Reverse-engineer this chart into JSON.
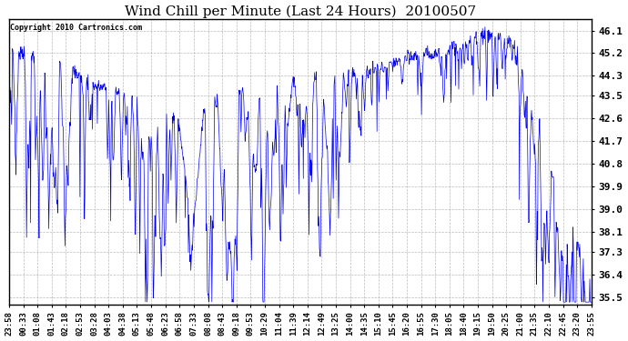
{
  "title": "Wind Chill per Minute (Last 24 Hours)  20100507",
  "copyright": "Copyright 2010 Cartronics.com",
  "line_color": "#0000EE",
  "bg_color": "#ffffff",
  "plot_bg_color": "#ffffff",
  "grid_color": "#aaaaaa",
  "ylim": [
    35.2,
    46.55
  ],
  "yticks": [
    35.5,
    36.4,
    37.3,
    38.1,
    39.0,
    39.9,
    40.8,
    41.7,
    42.6,
    43.5,
    44.3,
    45.2,
    46.1
  ],
  "xtick_labels": [
    "23:58",
    "00:33",
    "01:08",
    "01:43",
    "02:18",
    "02:53",
    "03:28",
    "04:03",
    "04:38",
    "05:13",
    "05:48",
    "06:23",
    "06:58",
    "07:33",
    "08:08",
    "08:43",
    "09:18",
    "09:53",
    "10:29",
    "11:04",
    "11:39",
    "12:14",
    "12:49",
    "13:25",
    "14:00",
    "14:35",
    "15:10",
    "15:45",
    "16:20",
    "16:55",
    "17:30",
    "18:05",
    "18:40",
    "19:15",
    "19:50",
    "20:25",
    "21:00",
    "21:35",
    "22:10",
    "22:45",
    "23:20",
    "23:55"
  ],
  "title_fontsize": 11,
  "tick_fontsize": 6.5,
  "ytick_fontsize": 8
}
